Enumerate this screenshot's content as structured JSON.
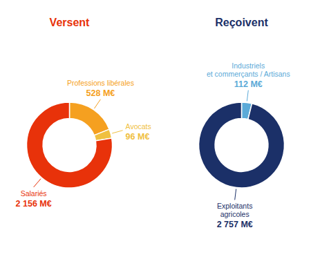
{
  "chart_data": [
    {
      "type": "donut",
      "title": "Versent",
      "color": "#E8320A",
      "categories": [
        "Professions libérales",
        "Avocats",
        "Salariés"
      ],
      "values": [
        528,
        96,
        2156
      ],
      "value_labels": [
        "528 M€",
        "96 M€",
        "2 156 M€"
      ],
      "colors": [
        "#F5A020",
        "#F0C040",
        "#E8320A"
      ],
      "data_labels": true
    },
    {
      "type": "donut",
      "title": "Reçoivent",
      "color": "#1B3068",
      "categories": [
        "Industriels\net commerçants / Artisans",
        "Exploitants\nagricoles"
      ],
      "values": [
        112,
        2757
      ],
      "value_labels": [
        "112 M€",
        "2 757 M€"
      ],
      "colors": [
        "#5BAAD8",
        "#1B3068"
      ],
      "data_labels": true
    }
  ]
}
